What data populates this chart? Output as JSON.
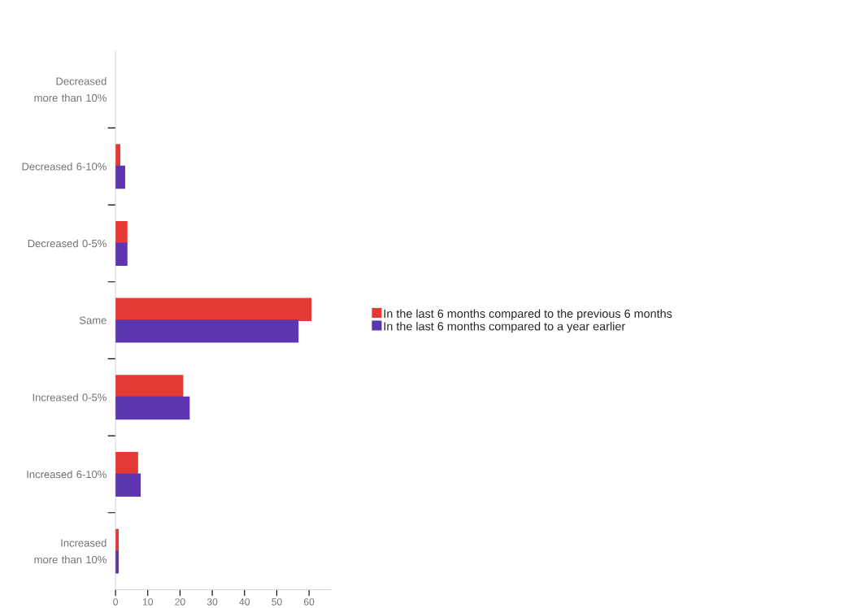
{
  "chart_data": {
    "type": "bar",
    "orientation": "horizontal",
    "categories": [
      "Decreased more than 10%",
      "Decreased 6-10%",
      "Decreased 0-5%",
      "Same",
      "Increased 0-5%",
      "Increased 6-10%",
      "Increased more than 10%"
    ],
    "series": [
      {
        "name": "In the last 6 months compared to the previous 6 months",
        "color": "#e53935",
        "values": [
          0,
          1.5,
          3.7,
          60.8,
          21,
          7,
          1
        ]
      },
      {
        "name": "In the last 6 months compared to a year earlier",
        "color": "#5e35b1",
        "values": [
          0,
          3,
          3.7,
          56.8,
          23,
          7.8,
          1
        ]
      }
    ],
    "xlim": [
      0,
      67
    ],
    "xticks": [
      0,
      10,
      20,
      30,
      40,
      50,
      60
    ],
    "grid": false,
    "legend": "right"
  }
}
